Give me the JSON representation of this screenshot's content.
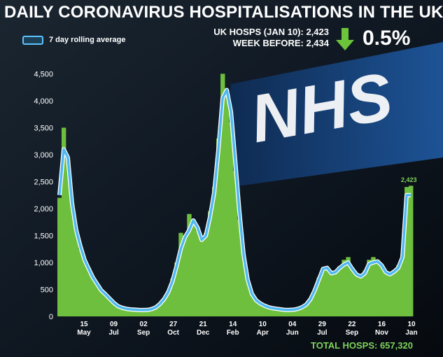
{
  "title": "DAILY CORONAVIRUS HOSPITALISATIONS  IN THE UK",
  "legend_label": "7 day rolling average",
  "stats": {
    "line1": "UK HOSPS (JAN 10): 2,423",
    "line2": "WEEK BEFORE: 2,434",
    "change": "0.5%"
  },
  "total_label": "TOTAL HOSPS: 657,320",
  "last_value_label": "2,423",
  "background_text": "NHS",
  "colors": {
    "bars": "#6fbf3f",
    "line": "#4fb8f0",
    "arrow": "#6cc43a",
    "total": "#7fd35a"
  },
  "icons": {
    "change_arrow": "down-arrow-icon"
  },
  "chart_data": {
    "type": "bar",
    "title": "DAILY CORONAVIRUS HOSPITALISATIONS  IN THE UK",
    "xlabel": "",
    "ylabel": "",
    "ylim": [
      0,
      4700
    ],
    "yticks": [
      0,
      500,
      1000,
      1500,
      2000,
      2500,
      3000,
      3500,
      4000,
      4500
    ],
    "ytick_labels": [
      "0",
      "500",
      "1,000",
      "1,500",
      "2,000",
      "2,500",
      "3,000",
      "3,500",
      "4,000",
      "4,500"
    ],
    "xtick_labels": [
      {
        "day": "15",
        "month": "May"
      },
      {
        "day": "09",
        "month": "Jul"
      },
      {
        "day": "02",
        "month": "Sep"
      },
      {
        "day": "27",
        "month": "Oct"
      },
      {
        "day": "21",
        "month": "Dec"
      },
      {
        "day": "14",
        "month": "Feb"
      },
      {
        "day": "10",
        "month": "Apr"
      },
      {
        "day": "04",
        "month": "Jun"
      },
      {
        "day": "29",
        "month": "Jul"
      },
      {
        "day": "22",
        "month": "Sep"
      },
      {
        "day": "16",
        "month": "Nov"
      },
      {
        "day": "10",
        "month": "Jan"
      }
    ],
    "grid": false,
    "legend": "top-left",
    "series": [
      {
        "name": "7 day rolling average",
        "type": "line",
        "values": [
          2250,
          3100,
          2950,
          2100,
          1600,
          1300,
          1050,
          880,
          720,
          600,
          480,
          410,
          330,
          250,
          190,
          160,
          140,
          130,
          125,
          120,
          118,
          120,
          135,
          165,
          230,
          320,
          450,
          650,
          930,
          1250,
          1470,
          1600,
          1780,
          1650,
          1420,
          1500,
          1850,
          2300,
          3100,
          4050,
          4200,
          3800,
          2900,
          1950,
          1150,
          680,
          420,
          300,
          240,
          200,
          170,
          150,
          140,
          130,
          120,
          120,
          125,
          140,
          170,
          220,
          320,
          480,
          680,
          880,
          900,
          800,
          820,
          900,
          960,
          1000,
          880,
          780,
          740,
          800,
          970,
          1000,
          1020,
          950,
          820,
          780,
          830,
          900,
          1100,
          2250,
          2250
        ]
      }
    ],
    "daily_values": [
      2200,
      3500,
      2900,
      2100,
      1600,
      1250,
      1050,
      900,
      700,
      600,
      500,
      400,
      320,
      260,
      200,
      170,
      150,
      140,
      130,
      120,
      120,
      125,
      140,
      170,
      240,
      330,
      470,
      700,
      1000,
      1550,
      1500,
      1900,
      1800,
      1600,
      1450,
      1550,
      1950,
      2400,
      3300,
      4500,
      4200,
      3600,
      2700,
      1800,
      1100,
      650,
      420,
      300,
      240,
      200,
      170,
      150,
      140,
      130,
      120,
      120,
      125,
      140,
      170,
      230,
      330,
      500,
      720,
      900,
      880,
      820,
      850,
      930,
      1050,
      1100,
      900,
      800,
      780,
      850,
      1050,
      1100,
      1050,
      950,
      830,
      800,
      860,
      950,
      1150,
      2400,
      2423
    ],
    "last_value": 2423
  }
}
